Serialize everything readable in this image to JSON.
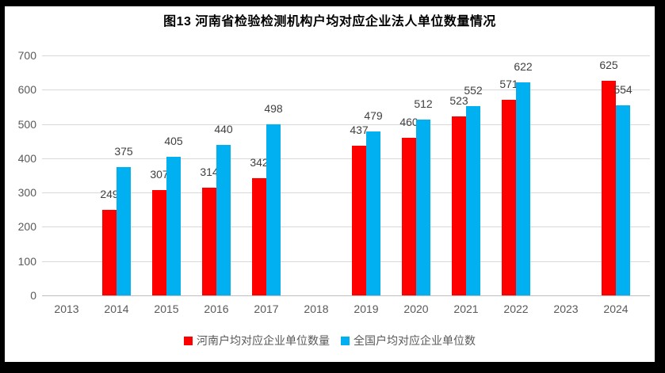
{
  "title": "图13  河南省检验检测机构户均对应企业法人单位数量情况",
  "colors": {
    "henan_series": "#FF0000",
    "national_series": "#00B0F0",
    "gridline": "#D9D9D9",
    "axis_line": "#BFBFBF",
    "tick_label": "#595959",
    "data_label": "#404040",
    "frame": "#000000",
    "background": "#FFFFFF"
  },
  "chart_data": {
    "type": "bar",
    "title": "图13  河南省检验检测机构户均对应企业法人单位数量情况",
    "categories": [
      "2013",
      "2014",
      "2015",
      "2016",
      "2017",
      "2018",
      "2019",
      "2020",
      "2021",
      "2022",
      "2023",
      "2024"
    ],
    "series": [
      {
        "name": "河南户均对应企业单位数量",
        "color": "#FF0000",
        "values": [
          null,
          249,
          307,
          314,
          342,
          null,
          437,
          460,
          523,
          571,
          null,
          625
        ]
      },
      {
        "name": "全国户均对应企业单位数",
        "color": "#00B0F0",
        "values": [
          null,
          375,
          405,
          440,
          498,
          null,
          479,
          512,
          552,
          622,
          null,
          554
        ]
      }
    ],
    "ylim": [
      0,
      700
    ],
    "yticks": [
      0,
      100,
      200,
      300,
      400,
      500,
      600,
      700
    ],
    "xlabel": "",
    "ylabel": "",
    "grid": true,
    "data_labels": true,
    "legend_position": "bottom"
  },
  "legend": {
    "items": [
      {
        "label": "河南户均对应企业单位数量",
        "color": "#FF0000"
      },
      {
        "label": "全国户均对应企业单位数",
        "color": "#00B0F0"
      }
    ]
  }
}
